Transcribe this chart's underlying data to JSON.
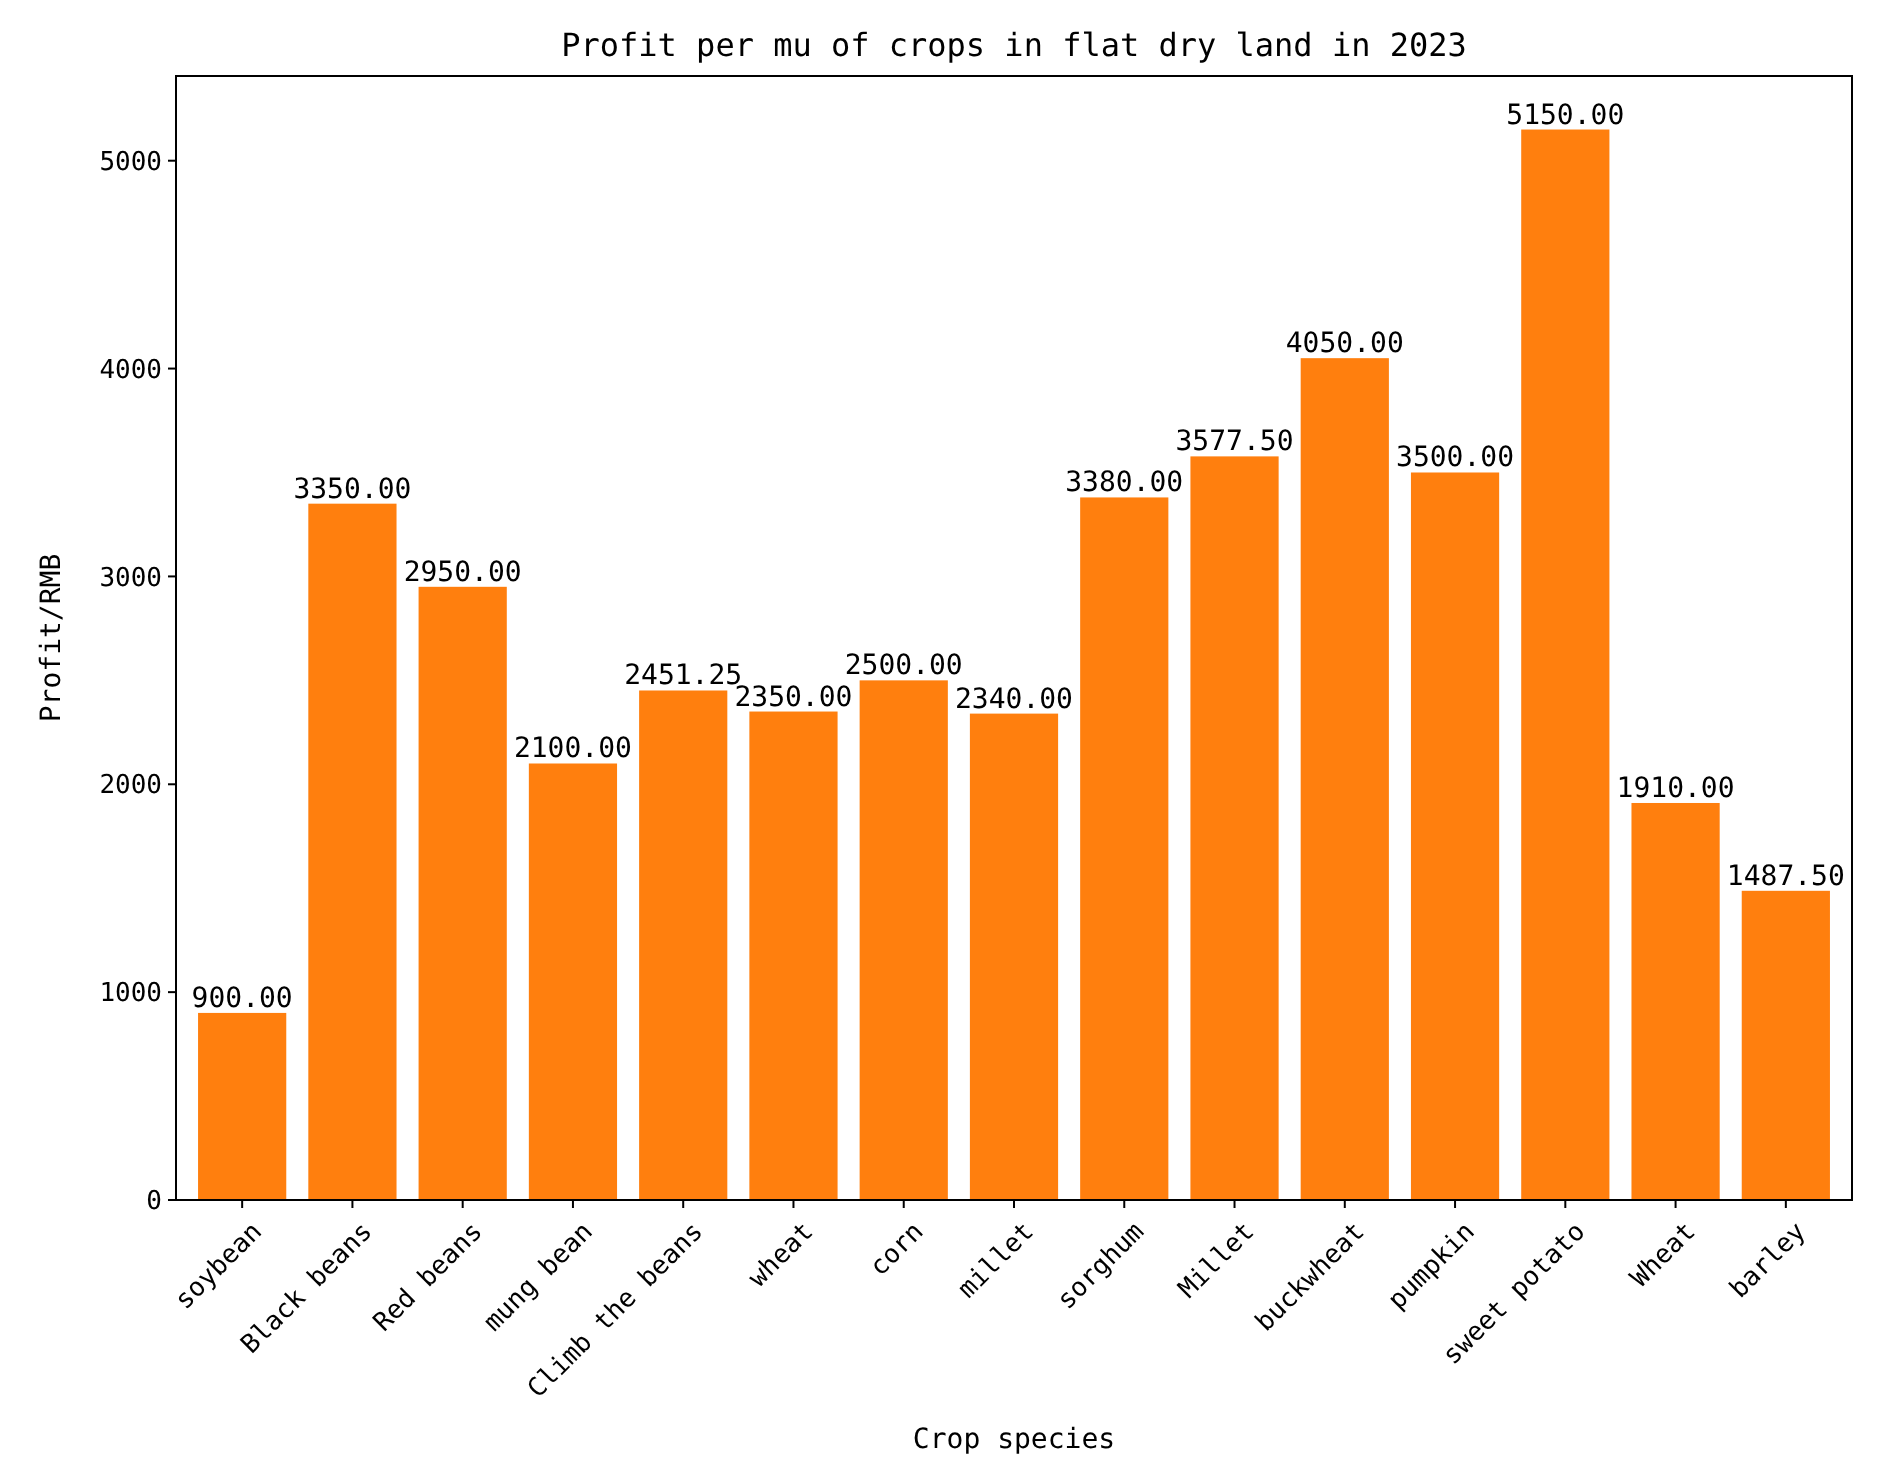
{
  "chart_data": {
    "type": "bar",
    "title": "Profit per mu of crops in flat dry land in 2023",
    "xlabel": "Crop species",
    "ylabel": "Profit/RMB",
    "categories": [
      "soybean",
      "Black beans",
      "Red beans",
      "mung bean",
      "Climb the beans",
      "wheat",
      "corn",
      "millet",
      "sorghum",
      "Millet",
      "buckwheat",
      "pumpkin",
      "sweet potato",
      "Wheat",
      "barley"
    ],
    "values": [
      900,
      3350,
      2950,
      2100,
      2451.25,
      2350,
      2500,
      2340,
      3380,
      3577.5,
      4050,
      3500,
      5150,
      1910,
      1487.5
    ],
    "value_labels": [
      "900.00",
      "3350.00",
      "2950.00",
      "2100.00",
      "2451.25",
      "2350.00",
      "2500.00",
      "2340.00",
      "3380.00",
      "3577.50",
      "4050.00",
      "3500.00",
      "5150.00",
      "1910.00",
      "1487.50"
    ],
    "color": "#ff7f0e",
    "ylim": [
      0,
      5407.5
    ],
    "yticks": [
      0,
      1000,
      2000,
      3000,
      4000,
      5000
    ],
    "grid": false
  }
}
